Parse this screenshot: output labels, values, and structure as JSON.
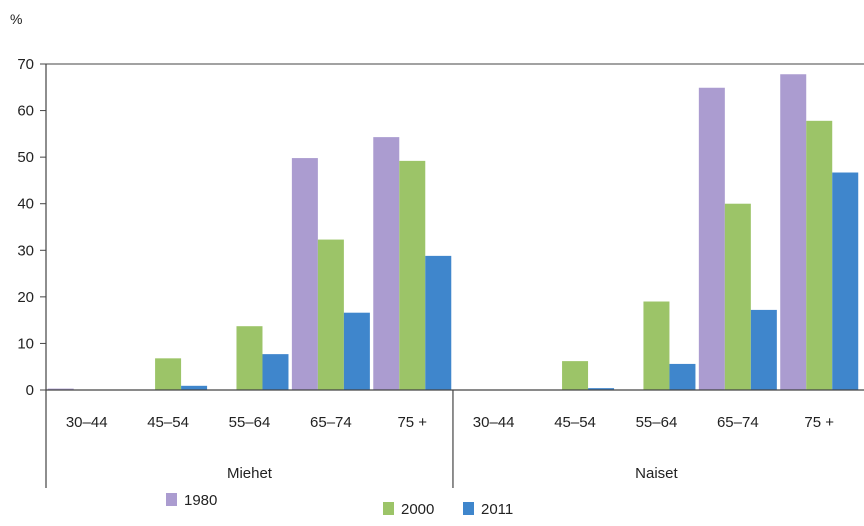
{
  "chart_data": {
    "type": "bar",
    "ylabel": "%",
    "ylim": [
      0,
      70
    ],
    "yticks": [
      0,
      10,
      20,
      30,
      40,
      50,
      60,
      70
    ],
    "grid": false,
    "legend_position": "bottom",
    "groups": [
      {
        "label": "Miehet",
        "categories": [
          "30–44",
          "45–54",
          "55–64",
          "65–74",
          "75 +"
        ]
      },
      {
        "label": "Naiset",
        "categories": [
          "30–44",
          "45–54",
          "55–64",
          "65–74",
          "75 +"
        ]
      }
    ],
    "categories": [
      "30–44",
      "45–54",
      "55–64",
      "65–74",
      "75 +",
      "30–44",
      "45–54",
      "55–64",
      "65–74",
      "75 +"
    ],
    "series": [
      {
        "name": "1980",
        "color": "#ab9cd0",
        "values": [
          0.3,
          0,
          0,
          49.8,
          54.3,
          0,
          0,
          0,
          64.9,
          67.8
        ]
      },
      {
        "name": "2000",
        "color": "#9cc468",
        "values": [
          0,
          6.8,
          13.7,
          32.3,
          49.2,
          0,
          6.2,
          19.0,
          40.0,
          57.8
        ]
      },
      {
        "name": "2011",
        "color": "#3f86cc",
        "values": [
          0,
          0.9,
          7.7,
          16.6,
          28.8,
          0,
          0.4,
          5.6,
          17.2,
          46.7
        ]
      }
    ]
  }
}
